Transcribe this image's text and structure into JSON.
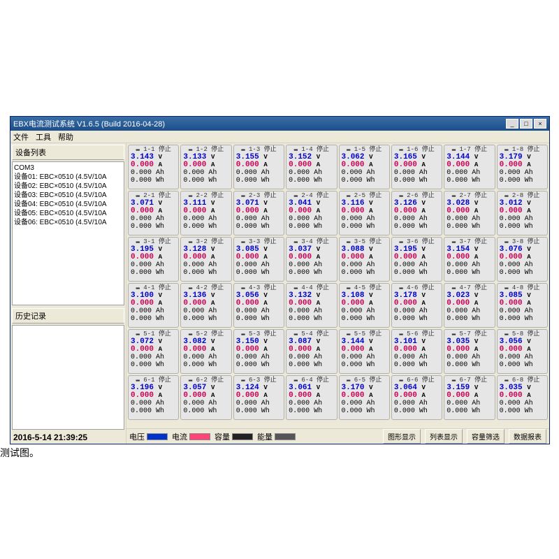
{
  "window": {
    "title": "EBX电流测试系统  V1.6.5 (Build 2016-04-28)",
    "min": "_",
    "max": "□",
    "close": "×"
  },
  "menu": {
    "file": "文件",
    "tool": "工具",
    "help": "帮助"
  },
  "left": {
    "devlist_title": "设备列表",
    "com": "COM3",
    "devices": [
      "设备01: EBC×0510 (4.5V/10A",
      "设备02: EBC×0510 (4.5V/10A",
      "设备03: EBC×0510 (4.5V/10A",
      "设备04: EBC×0510 (4.5V/10A",
      "设备05: EBC×0510 (4.5V/10A",
      "设备06: EBC×0510 (4.5V/10A"
    ],
    "history_title": "历史记录",
    "time": "2016-5-14 21:39:25"
  },
  "legend": {
    "voltage": "电压",
    "current": "电流",
    "capacity": "容量",
    "energy": "能量",
    "c_voltage": "#0033cc",
    "c_current": "#ff4477",
    "c_capacity": "#222222",
    "c_energy": "#555555"
  },
  "buttons": {
    "b1": "图形显示",
    "b2": "列表显示",
    "b3": "容量筛选",
    "b4": "数据报表"
  },
  "units": {
    "v": "V",
    "a": "A",
    "ah": "Ah",
    "wh": "Wh"
  },
  "status_stop": "停止",
  "cells": [
    {
      "id": "1-1",
      "v": "3.143",
      "a": "0.000",
      "ah": "0.000",
      "wh": "0.000"
    },
    {
      "id": "1-2",
      "v": "3.133",
      "a": "0.000",
      "ah": "0.000",
      "wh": "0.000"
    },
    {
      "id": "1-3",
      "v": "3.155",
      "a": "0.000",
      "ah": "0.000",
      "wh": "0.000"
    },
    {
      "id": "1-4",
      "v": "3.152",
      "a": "0.000",
      "ah": "0.000",
      "wh": "0.000"
    },
    {
      "id": "1-5",
      "v": "3.062",
      "a": "0.000",
      "ah": "0.000",
      "wh": "0.000"
    },
    {
      "id": "1-6",
      "v": "3.165",
      "a": "0.000",
      "ah": "0.000",
      "wh": "0.000"
    },
    {
      "id": "1-7",
      "v": "3.144",
      "a": "0.000",
      "ah": "0.000",
      "wh": "0.000"
    },
    {
      "id": "1-8",
      "v": "3.179",
      "a": "0.000",
      "ah": "0.000",
      "wh": "0.000"
    },
    {
      "id": "2-1",
      "v": "3.071",
      "a": "0.000",
      "ah": "0.000",
      "wh": "0.000"
    },
    {
      "id": "2-2",
      "v": "3.111",
      "a": "0.000",
      "ah": "0.000",
      "wh": "0.000"
    },
    {
      "id": "2-3",
      "v": "3.071",
      "a": "0.000",
      "ah": "0.000",
      "wh": "0.000"
    },
    {
      "id": "2-4",
      "v": "3.041",
      "a": "0.000",
      "ah": "0.000",
      "wh": "0.000"
    },
    {
      "id": "2-5",
      "v": "3.116",
      "a": "0.000",
      "ah": "0.000",
      "wh": "0.000"
    },
    {
      "id": "2-6",
      "v": "3.126",
      "a": "0.000",
      "ah": "0.000",
      "wh": "0.000"
    },
    {
      "id": "2-7",
      "v": "3.028",
      "a": "0.000",
      "ah": "0.000",
      "wh": "0.000"
    },
    {
      "id": "2-8",
      "v": "3.012",
      "a": "0.000",
      "ah": "0.000",
      "wh": "0.000"
    },
    {
      "id": "3-1",
      "v": "3.195",
      "a": "0.000",
      "ah": "0.000",
      "wh": "0.000"
    },
    {
      "id": "3-2",
      "v": "3.128",
      "a": "0.000",
      "ah": "0.000",
      "wh": "0.000"
    },
    {
      "id": "3-3",
      "v": "3.085",
      "a": "0.000",
      "ah": "0.000",
      "wh": "0.000"
    },
    {
      "id": "3-4",
      "v": "3.037",
      "a": "0.000",
      "ah": "0.000",
      "wh": "0.000"
    },
    {
      "id": "3-5",
      "v": "3.088",
      "a": "0.000",
      "ah": "0.000",
      "wh": "0.000"
    },
    {
      "id": "3-6",
      "v": "3.195",
      "a": "0.000",
      "ah": "0.000",
      "wh": "0.000"
    },
    {
      "id": "3-7",
      "v": "3.154",
      "a": "0.000",
      "ah": "0.000",
      "wh": "0.000"
    },
    {
      "id": "3-8",
      "v": "3.076",
      "a": "0.000",
      "ah": "0.000",
      "wh": "0.000"
    },
    {
      "id": "4-1",
      "v": "3.100",
      "a": "0.000",
      "ah": "0.000",
      "wh": "0.000"
    },
    {
      "id": "4-2",
      "v": "3.136",
      "a": "0.000",
      "ah": "0.000",
      "wh": "0.000"
    },
    {
      "id": "4-3",
      "v": "3.056",
      "a": "0.000",
      "ah": "0.000",
      "wh": "0.000"
    },
    {
      "id": "4-4",
      "v": "3.132",
      "a": "0.000",
      "ah": "0.000",
      "wh": "0.000"
    },
    {
      "id": "4-5",
      "v": "3.108",
      "a": "0.000",
      "ah": "0.000",
      "wh": "0.000"
    },
    {
      "id": "4-6",
      "v": "3.178",
      "a": "0.000",
      "ah": "0.000",
      "wh": "0.000"
    },
    {
      "id": "4-7",
      "v": "3.023",
      "a": "0.000",
      "ah": "0.000",
      "wh": "0.000"
    },
    {
      "id": "4-8",
      "v": "3.085",
      "a": "0.000",
      "ah": "0.000",
      "wh": "0.000"
    },
    {
      "id": "5-1",
      "v": "3.072",
      "a": "0.000",
      "ah": "0.000",
      "wh": "0.000"
    },
    {
      "id": "5-2",
      "v": "3.082",
      "a": "0.000",
      "ah": "0.000",
      "wh": "0.000"
    },
    {
      "id": "5-3",
      "v": "3.150",
      "a": "0.000",
      "ah": "0.000",
      "wh": "0.000"
    },
    {
      "id": "5-4",
      "v": "3.087",
      "a": "0.000",
      "ah": "0.000",
      "wh": "0.000"
    },
    {
      "id": "5-5",
      "v": "3.144",
      "a": "0.000",
      "ah": "0.000",
      "wh": "0.000"
    },
    {
      "id": "5-6",
      "v": "3.101",
      "a": "0.000",
      "ah": "0.000",
      "wh": "0.000"
    },
    {
      "id": "5-7",
      "v": "3.035",
      "a": "0.000",
      "ah": "0.000",
      "wh": "0.000"
    },
    {
      "id": "5-8",
      "v": "3.056",
      "a": "0.000",
      "ah": "0.000",
      "wh": "0.000"
    },
    {
      "id": "6-1",
      "v": "3.196",
      "a": "0.000",
      "ah": "0.000",
      "wh": "0.000"
    },
    {
      "id": "6-2",
      "v": "3.057",
      "a": "0.000",
      "ah": "0.000",
      "wh": "0.000"
    },
    {
      "id": "6-3",
      "v": "3.124",
      "a": "0.000",
      "ah": "0.000",
      "wh": "0.000"
    },
    {
      "id": "6-4",
      "v": "3.061",
      "a": "0.000",
      "ah": "0.000",
      "wh": "0.000"
    },
    {
      "id": "6-5",
      "v": "3.170",
      "a": "0.000",
      "ah": "0.000",
      "wh": "0.000"
    },
    {
      "id": "6-6",
      "v": "3.064",
      "a": "0.000",
      "ah": "0.000",
      "wh": "0.000"
    },
    {
      "id": "6-7",
      "v": "3.159",
      "a": "0.000",
      "ah": "0.000",
      "wh": "0.000"
    },
    {
      "id": "6-8",
      "v": "3.035",
      "a": "0.000",
      "ah": "0.000",
      "wh": "0.000"
    }
  ],
  "below_label": "测试图。"
}
